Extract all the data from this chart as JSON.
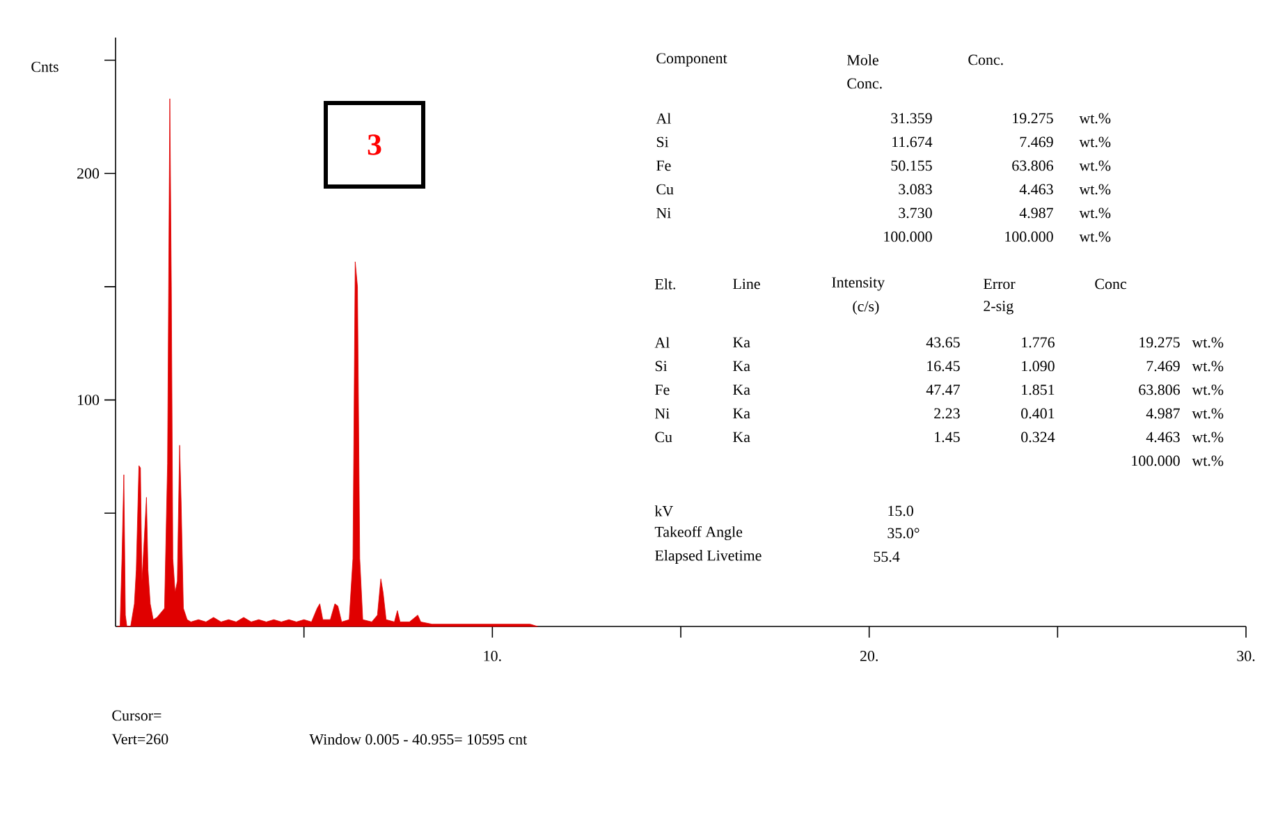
{
  "chart_data": {
    "type": "area",
    "ylabel": "Cnts",
    "color": "#e00000",
    "x": [
      0.05,
      0.12,
      0.17,
      0.22,
      0.26,
      0.3,
      0.4,
      0.5,
      0.55,
      0.62,
      0.66,
      0.7,
      0.75,
      0.82,
      0.86,
      0.92,
      1.0,
      1.1,
      1.2,
      1.3,
      1.38,
      1.44,
      1.48,
      1.52,
      1.58,
      1.64,
      1.7,
      1.74,
      1.8,
      1.9,
      2.0,
      2.2,
      2.4,
      2.6,
      2.8,
      3.0,
      3.2,
      3.4,
      3.6,
      3.8,
      4.0,
      4.2,
      4.4,
      4.6,
      4.8,
      5.0,
      5.2,
      5.35,
      5.42,
      5.5,
      5.7,
      5.82,
      5.9,
      6.0,
      6.2,
      6.3,
      6.36,
      6.42,
      6.48,
      6.56,
      6.8,
      6.95,
      7.04,
      7.1,
      7.18,
      7.4,
      7.48,
      7.55,
      7.8,
      8.02,
      8.1,
      8.4,
      8.8,
      9.2,
      9.6,
      10.0,
      10.5,
      11.0,
      11.2
    ],
    "values": [
      0,
      0,
      30,
      67,
      5,
      0,
      0,
      10,
      25,
      71,
      70,
      20,
      35,
      57,
      25,
      10,
      3,
      4,
      6,
      8,
      72,
      233,
      150,
      30,
      15,
      20,
      80,
      55,
      8,
      3,
      2,
      3,
      2,
      4,
      2,
      3,
      2,
      4,
      2,
      3,
      2,
      3,
      2,
      3,
      2,
      3,
      2,
      8,
      10,
      3,
      3,
      10,
      9,
      2,
      3,
      30,
      161,
      150,
      30,
      3,
      2,
      5,
      21,
      15,
      3,
      2,
      7,
      2,
      2,
      5,
      2,
      1,
      1,
      1,
      1,
      1,
      1,
      1,
      0
    ],
    "xlim": [
      0,
      30
    ],
    "ylim": [
      0,
      260
    ],
    "xticks": [
      {
        "value": 5,
        "label": null
      },
      {
        "value": 10,
        "label": "10."
      },
      {
        "value": 15,
        "label": null
      },
      {
        "value": 20,
        "label": "20."
      },
      {
        "value": 25,
        "label": null
      },
      {
        "value": 30,
        "label": "30."
      }
    ],
    "yticks": [
      {
        "value": 50,
        "label": null
      },
      100,
      {
        "value": 150,
        "label": null
      },
      200,
      {
        "value": 250,
        "label": null
      }
    ],
    "annotations": [
      "3",
      "Component",
      "Mole",
      "Conc.",
      "Conc.",
      "Al",
      "31.359",
      "19.275",
      "wt.%",
      "Si",
      "11.674",
      "7.469",
      "wt.%",
      "Fe",
      "50.155",
      "63.806",
      "wt.%",
      "Cu",
      "3.083",
      "4.463",
      "wt.%",
      "Ni",
      "3.730",
      "4.987",
      "wt.%",
      "100.000",
      "100.000",
      "wt.%",
      "Elt.",
      "Line",
      "Intensity",
      "(c/s)",
      "Error",
      "2-sig",
      "Conc",
      "Al",
      "Ka",
      "43.65",
      "1.776",
      "19.275",
      "wt.%",
      "Si",
      "Ka",
      "16.45",
      "1.090",
      "7.469",
      "wt.%",
      "Fe",
      "Ka",
      "47.47",
      "1.851",
      "63.806",
      "wt.%",
      "Ni",
      "Ka",
      "2.23",
      "0.401",
      "4.987",
      "wt.%",
      "Cu",
      "Ka",
      "1.45",
      "0.324",
      "4.463",
      "wt.%",
      "100.000",
      "wt.%",
      "kV",
      "15.0",
      "Takeoff Angle",
      "35.0°",
      "Elapsed Livetime",
      "55.4",
      "Cursor=",
      "Vert=260",
      "Window 0.005 - 40.955=   10595 cnt"
    ]
  }
}
